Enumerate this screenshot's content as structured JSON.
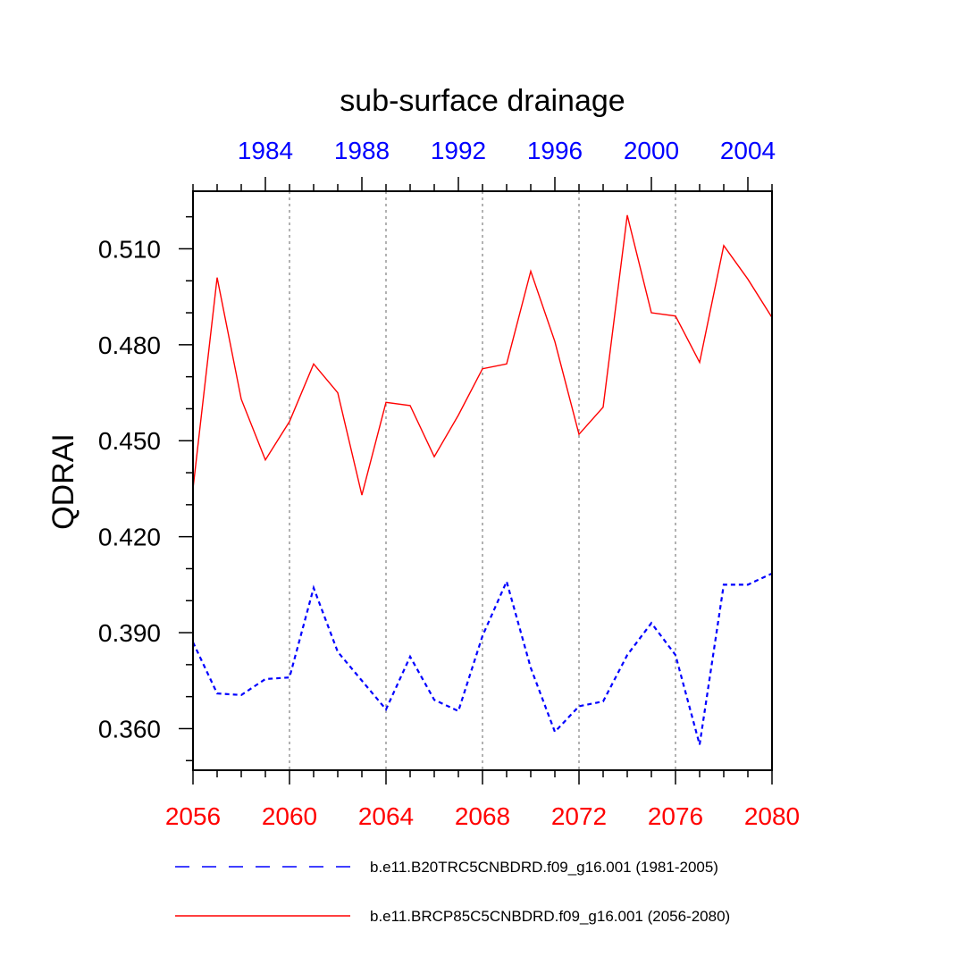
{
  "chart_data": {
    "type": "line",
    "title": "sub-surface drainage",
    "ylabel": "QDRAI",
    "xlabel": "",
    "ylim": [
      0.347,
      0.528
    ],
    "x_bottom": {
      "range": [
        2056,
        2080
      ],
      "ticks": [
        2056,
        2060,
        2064,
        2068,
        2072,
        2076,
        2080
      ],
      "color": "#ff0000"
    },
    "x_top": {
      "range": [
        1981,
        2005
      ],
      "ticks": [
        1984,
        1988,
        1992,
        1996,
        2000,
        2004
      ],
      "color": "#0000ff"
    },
    "y_ticks": [
      "0.360",
      "0.390",
      "0.420",
      "0.450",
      "0.480",
      "0.510"
    ],
    "grid": "vertical dotted at bottom-axis major ticks",
    "legend_position": "bottom",
    "series": [
      {
        "name": "b.e11.B20TRC5CNBDRD.f09_g16.001 (1981-2005)",
        "axis": "top",
        "color": "#0000ff",
        "style": "dashed",
        "x": [
          1981,
          1982,
          1983,
          1984,
          1985,
          1986,
          1987,
          1988,
          1989,
          1990,
          1991,
          1992,
          1993,
          1994,
          1995,
          1996,
          1997,
          1998,
          1999,
          2000,
          2001,
          2002,
          2003,
          2004,
          2005
        ],
        "values": [
          0.387,
          0.371,
          0.3705,
          0.3755,
          0.376,
          0.404,
          0.384,
          0.375,
          0.366,
          0.3825,
          0.369,
          0.3655,
          0.389,
          0.406,
          0.379,
          0.359,
          0.367,
          0.3685,
          0.383,
          0.393,
          0.383,
          0.355,
          0.405,
          0.405,
          0.4085
        ]
      },
      {
        "name": "b.e11.BRCP85C5CNBDRD.f09_g16.001 (2056-2080)",
        "axis": "bottom",
        "color": "#ff0000",
        "style": "solid",
        "x": [
          2056,
          2057,
          2058,
          2059,
          2060,
          2061,
          2062,
          2063,
          2064,
          2065,
          2066,
          2067,
          2068,
          2069,
          2070,
          2071,
          2072,
          2073,
          2074,
          2075,
          2076,
          2077,
          2078,
          2079,
          2080
        ],
        "values": [
          0.435,
          0.501,
          0.463,
          0.444,
          0.456,
          0.474,
          0.465,
          0.433,
          0.462,
          0.461,
          0.445,
          0.458,
          0.4725,
          0.474,
          0.503,
          0.481,
          0.452,
          0.4605,
          0.5205,
          0.49,
          0.489,
          0.4745,
          0.511,
          0.5005,
          0.4885
        ]
      }
    ]
  }
}
